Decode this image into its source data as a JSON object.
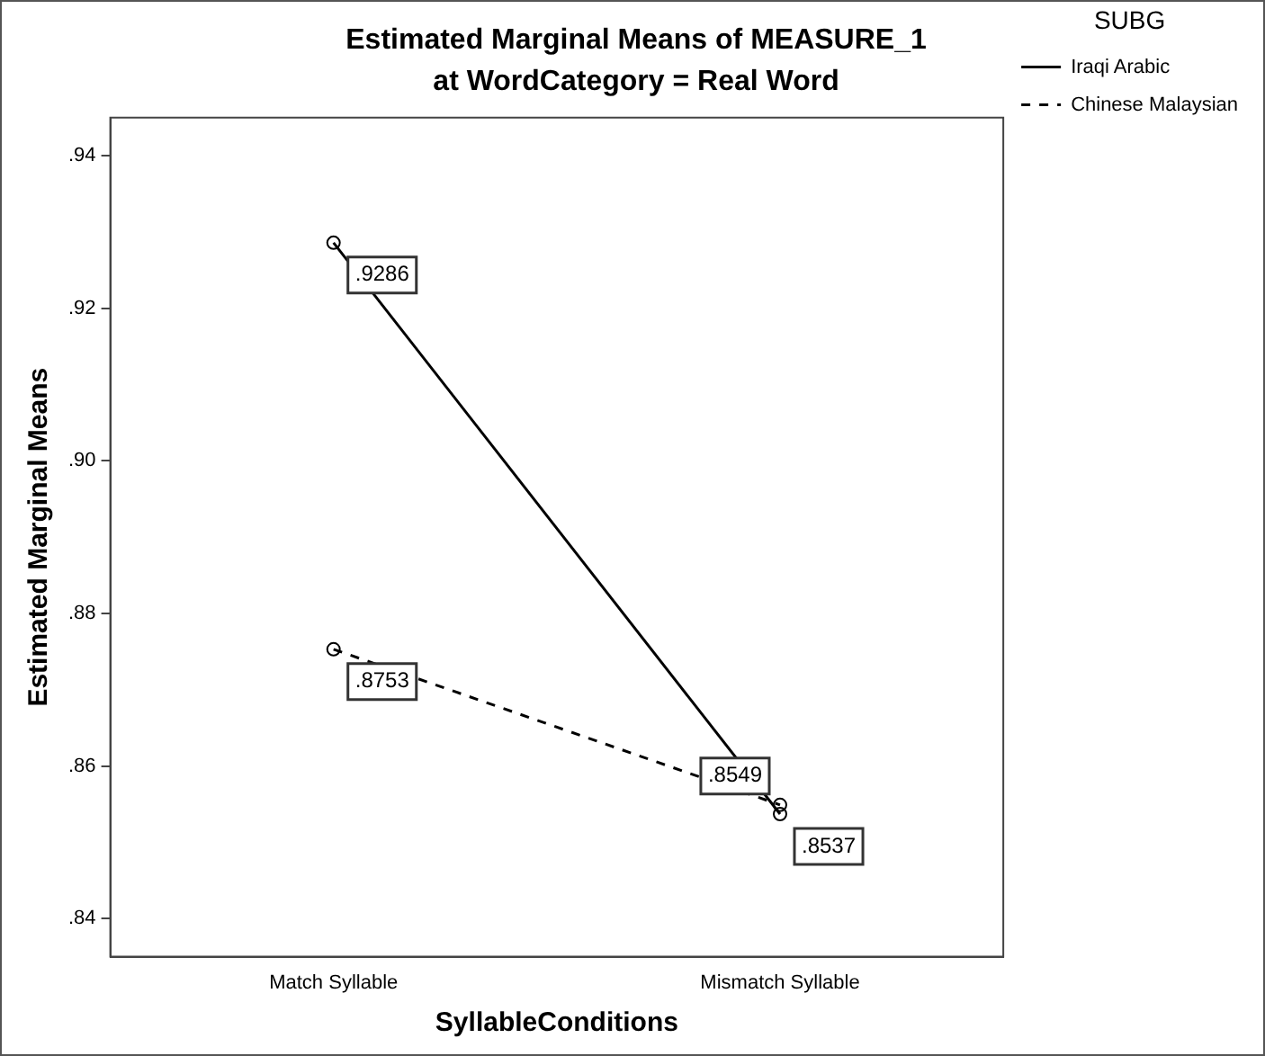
{
  "chart_data": {
    "type": "line",
    "title": "Estimated Marginal Means of MEASURE_1",
    "subtitle": "at WordCategory = Real Word",
    "xlabel": "SyllableConditions",
    "ylabel": "Estimated Marginal Means",
    "legend_title": "SUBG",
    "categories": [
      "Match Syllable",
      "Mismatch Syllable"
    ],
    "series": [
      {
        "name": "Iraqi Arabic",
        "color": "#000000",
        "values": [
          0.9286,
          0.8537
        ],
        "value_labels": [
          ".9286",
          ".8537"
        ],
        "line_style": "solid"
      },
      {
        "name": "Chinese Malaysian",
        "color": "#000000",
        "values": [
          0.8753,
          0.8549
        ],
        "value_labels": [
          ".8753",
          ".8549"
        ],
        "line_style": "dashed"
      }
    ],
    "ylim": [
      0.835,
      0.945
    ],
    "yticks": [
      {
        "value": 0.84,
        "label": ".84"
      },
      {
        "value": 0.86,
        "label": ".86"
      },
      {
        "value": 0.88,
        "label": ".88"
      },
      {
        "value": 0.9,
        "label": ".90"
      },
      {
        "value": 0.92,
        "label": ".92"
      },
      {
        "value": 0.94,
        "label": ".94"
      }
    ],
    "grid": false,
    "legend": "right",
    "marker": "circle"
  }
}
